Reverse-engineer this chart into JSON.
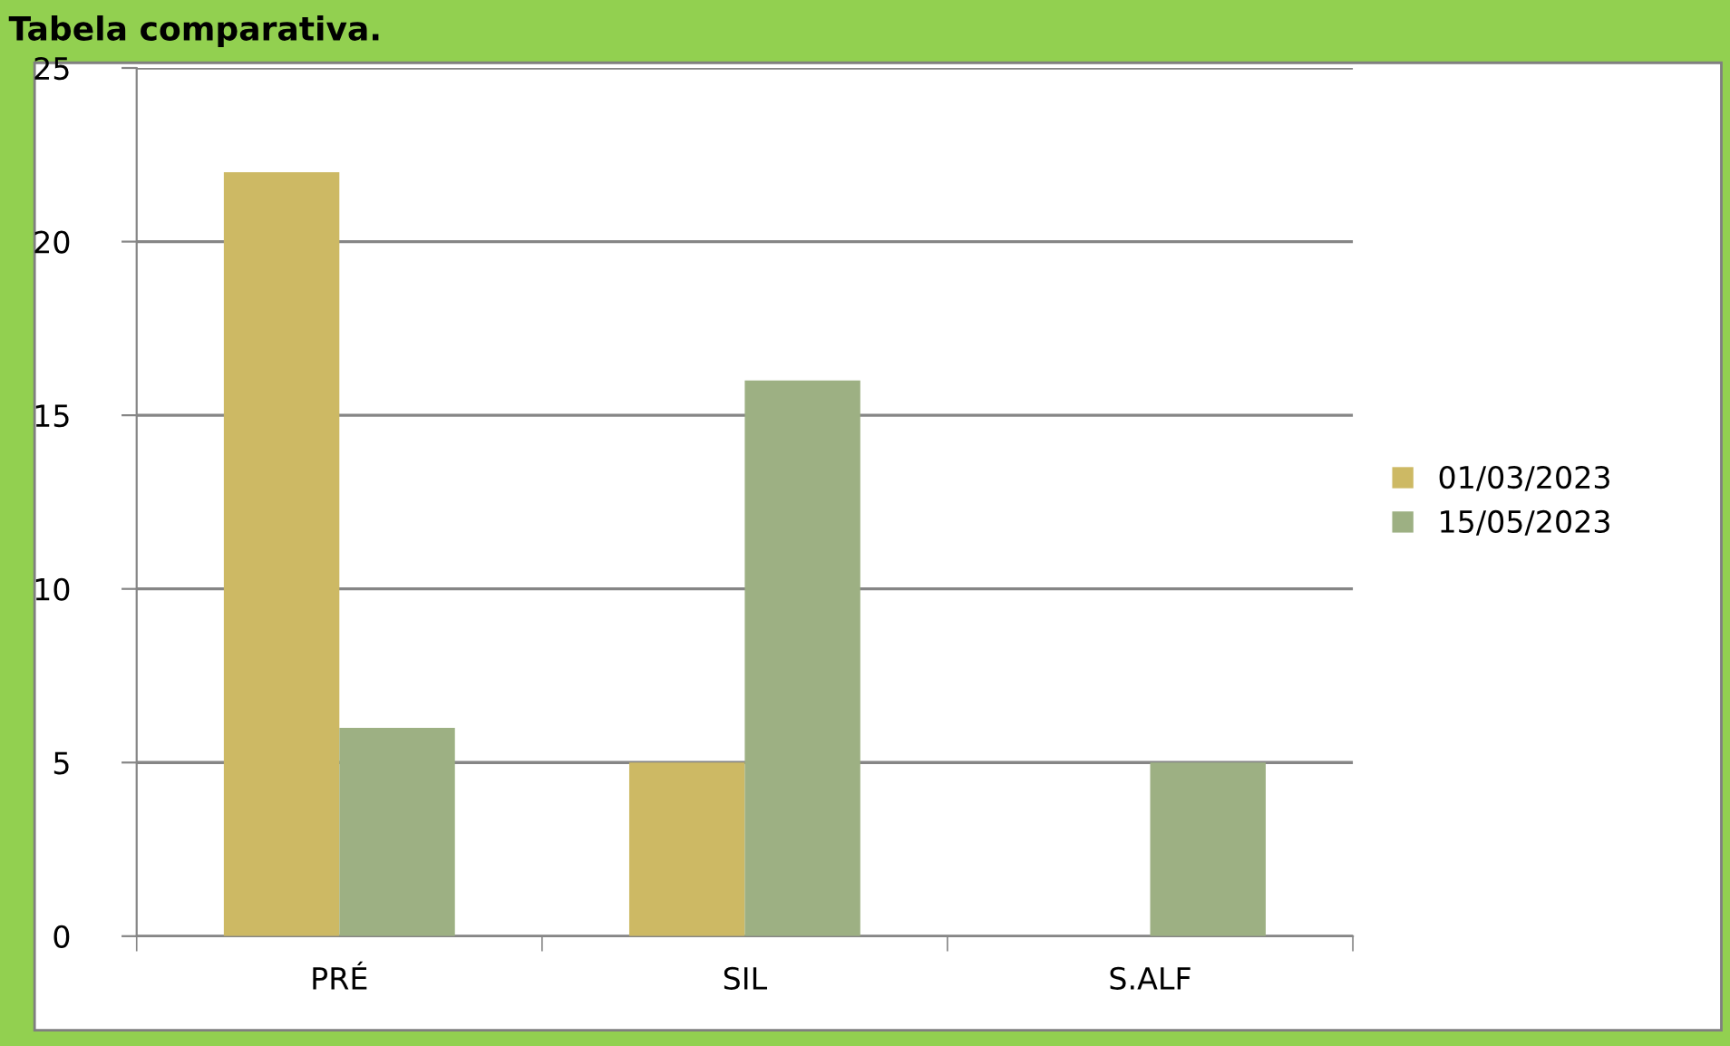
{
  "chart_data": {
    "type": "bar",
    "title": "Tabela comparativa.",
    "categories": [
      "PRÉ",
      "SIL",
      "S.ALF"
    ],
    "series": [
      {
        "name": "01/03/2023",
        "color": "#cdb964",
        "values": [
          22,
          5,
          0
        ]
      },
      {
        "name": "15/05/2023",
        "color": "#9db083",
        "values": [
          6,
          16,
          5
        ]
      }
    ],
    "ylim": [
      0,
      25
    ],
    "yticks": [
      0,
      5,
      10,
      15,
      20,
      25
    ],
    "grid": "y",
    "legend": "right"
  }
}
